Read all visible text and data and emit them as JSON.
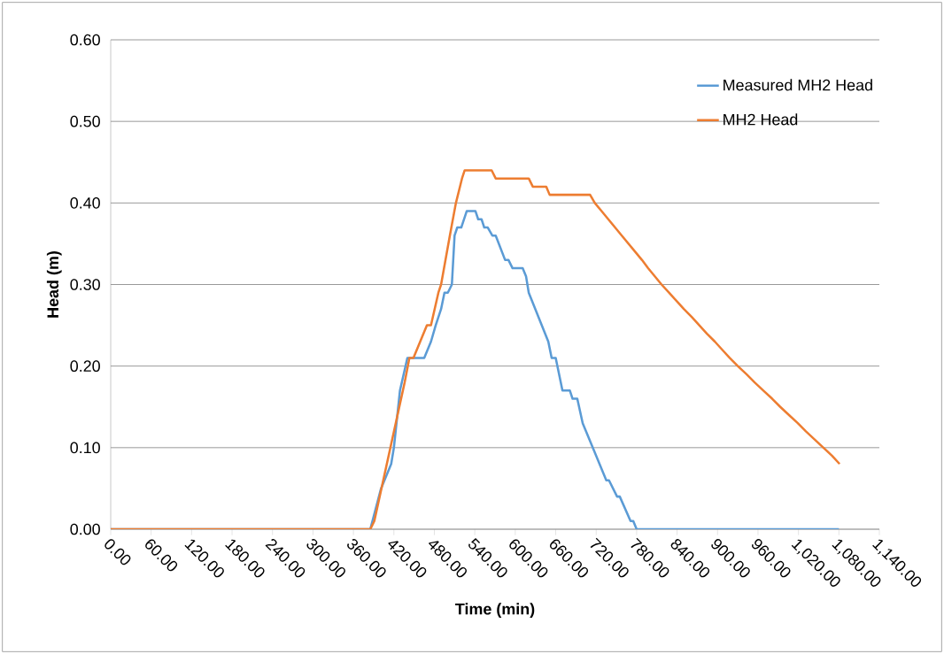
{
  "chart_data": {
    "type": "line",
    "xlabel": "Time (min)",
    "ylabel": "Head (m)",
    "xlim": [
      0,
      1140
    ],
    "ylim": [
      0,
      0.6
    ],
    "xticks": [
      {
        "value": 0,
        "label": "0.00"
      },
      {
        "value": 60,
        "label": "60.00"
      },
      {
        "value": 120,
        "label": "120.00"
      },
      {
        "value": 180,
        "label": "180.00"
      },
      {
        "value": 240,
        "label": "240.00"
      },
      {
        "value": 300,
        "label": "300.00"
      },
      {
        "value": 360,
        "label": "360.00"
      },
      {
        "value": 420,
        "label": "420.00"
      },
      {
        "value": 480,
        "label": "480.00"
      },
      {
        "value": 540,
        "label": "540.00"
      },
      {
        "value": 600,
        "label": "600.00"
      },
      {
        "value": 660,
        "label": "660.00"
      },
      {
        "value": 720,
        "label": "720.00"
      },
      {
        "value": 780,
        "label": "780.00"
      },
      {
        "value": 840,
        "label": "840.00"
      },
      {
        "value": 900,
        "label": "900.00"
      },
      {
        "value": 960,
        "label": "960.00"
      },
      {
        "value": 1020,
        "label": "1,020.00"
      },
      {
        "value": 1080,
        "label": "1,080.00"
      },
      {
        "value": 1140,
        "label": "1,140.00"
      }
    ],
    "yticks": [
      {
        "value": 0,
        "label": "0.00"
      },
      {
        "value": 0.1,
        "label": "0.10"
      },
      {
        "value": 0.2,
        "label": "0.20"
      },
      {
        "value": 0.3,
        "label": "0.30"
      },
      {
        "value": 0.4,
        "label": "0.40"
      },
      {
        "value": 0.5,
        "label": "0.50"
      },
      {
        "value": 0.6,
        "label": "0.60"
      }
    ],
    "grid": "y",
    "legend": "top right",
    "marker": "none",
    "line_style": "solid",
    "series": [
      {
        "name": "Measured MH2 Head",
        "color": "#5b9bd5",
        "x": [
          0,
          385,
          401,
          416,
          420,
          429,
          440,
          465,
          475,
          482,
          490,
          495,
          500,
          506,
          510,
          514,
          520,
          528,
          541,
          545,
          550,
          554,
          559,
          566,
          571,
          585,
          590,
          596,
          611,
          616,
          620,
          649,
          654,
          660,
          670,
          681,
          685,
          692,
          700,
          735,
          739,
          751,
          755,
          771,
          775,
          780,
          1080
        ],
        "values": [
          0,
          0,
          0.05,
          0.08,
          0.1,
          0.17,
          0.21,
          0.21,
          0.23,
          0.25,
          0.27,
          0.29,
          0.29,
          0.3,
          0.36,
          0.37,
          0.37,
          0.39,
          0.39,
          0.38,
          0.38,
          0.37,
          0.37,
          0.36,
          0.36,
          0.33,
          0.33,
          0.32,
          0.32,
          0.31,
          0.29,
          0.23,
          0.21,
          0.21,
          0.17,
          0.17,
          0.16,
          0.16,
          0.13,
          0.06,
          0.06,
          0.04,
          0.04,
          0.01,
          0.01,
          0,
          0
        ]
      },
      {
        "name": "MH2 Head",
        "color": "#ed7d31",
        "x": [
          0,
          385,
          391,
          436,
          443,
          449,
          469,
          475,
          486,
          490,
          503,
          512,
          521,
          525,
          565,
          571,
          620,
          626,
          646,
          651,
          711,
          718,
          728,
          738,
          748,
          758,
          768,
          778,
          788,
          797,
          807,
          817,
          828,
          839,
          850,
          862,
          873,
          884,
          896,
          907,
          918,
          930,
          943,
          955,
          968,
          981,
          993,
          1006,
          1019,
          1031,
          1044,
          1057,
          1070,
          1081
        ],
        "values": [
          0,
          0,
          0.01,
          0.18,
          0.21,
          0.21,
          0.25,
          0.25,
          0.29,
          0.3,
          0.36,
          0.4,
          0.43,
          0.44,
          0.44,
          0.43,
          0.43,
          0.42,
          0.42,
          0.41,
          0.41,
          0.4,
          0.39,
          0.38,
          0.37,
          0.36,
          0.35,
          0.34,
          0.33,
          0.32,
          0.31,
          0.3,
          0.29,
          0.28,
          0.27,
          0.26,
          0.25,
          0.24,
          0.23,
          0.22,
          0.21,
          0.2,
          0.19,
          0.18,
          0.17,
          0.16,
          0.15,
          0.14,
          0.13,
          0.12,
          0.11,
          0.1,
          0.09,
          0.08
        ]
      }
    ]
  }
}
